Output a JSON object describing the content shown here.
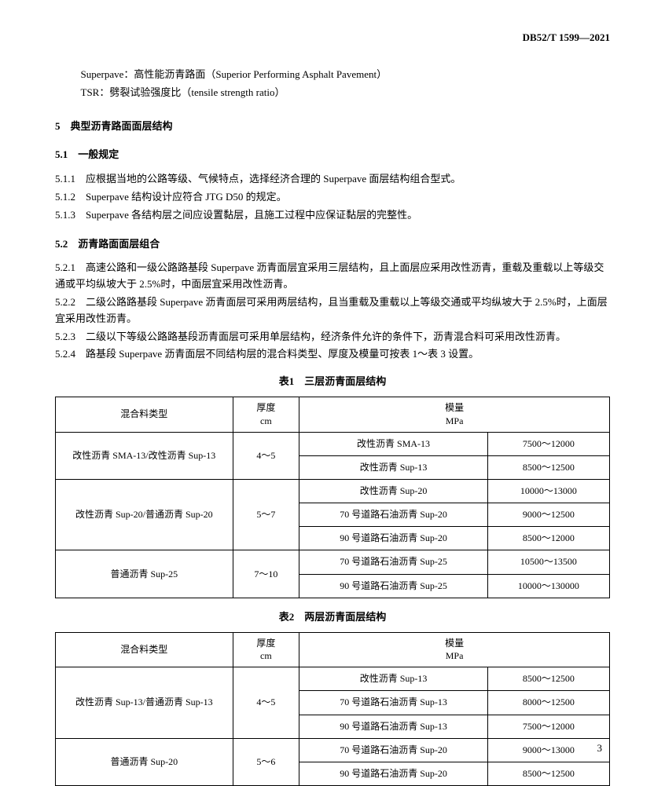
{
  "header": {
    "doc_code": "DB52/T 1599—2021"
  },
  "defs": [
    {
      "text": "Superpave：高性能沥青路面（Superior Performing Asphalt Pavement）"
    },
    {
      "text": "TSR：劈裂试验强度比（tensile strength ratio）"
    }
  ],
  "section5": {
    "num": "5",
    "title": "典型沥青路面面层结构"
  },
  "section51": {
    "num": "5.1",
    "title": "一般规定",
    "clauses": [
      {
        "num": "5.1.1",
        "text": "应根据当地的公路等级、气候特点，选择经济合理的 Superpave 面层结构组合型式。"
      },
      {
        "num": "5.1.2",
        "text": "Superpave 结构设计应符合 JTG D50 的规定。"
      },
      {
        "num": "5.1.3",
        "text": "Superpave 各结构层之间应设置黏层，且施工过程中应保证黏层的完整性。"
      }
    ]
  },
  "section52": {
    "num": "5.2",
    "title": "沥青路面面层组合",
    "clauses": [
      {
        "num": "5.2.1",
        "text": "高速公路和一级公路路基段 Superpave 沥青面层宜采用三层结构，且上面层应采用改性沥青，重载及重载以上等级交通或平均纵坡大于 2.5%时，中面层宜采用改性沥青。"
      },
      {
        "num": "5.2.2",
        "text": "二级公路路基段 Superpave 沥青面层可采用两层结构，且当重载及重载以上等级交通或平均纵坡大于 2.5%时，上面层宜采用改性沥青。"
      },
      {
        "num": "5.2.3",
        "text": "二级以下等级公路路基段沥青面层可采用单层结构，经济条件允许的条件下，沥青混合料可采用改性沥青。"
      },
      {
        "num": "5.2.4",
        "text": "路基段 Superpave 沥青面层不同结构层的混合料类型、厚度及模量可按表 1～表 3 设置。"
      }
    ]
  },
  "table1": {
    "caption": "表1　三层沥青面层结构",
    "header": {
      "c1": "混合料类型",
      "c2_top": "厚度",
      "c2_bot": "cm",
      "c3_top": "模量",
      "c3_bot": "MPa"
    },
    "groups": [
      {
        "mix": "改性沥青 SMA-13/改性沥青 Sup-13",
        "thickness": "4～5",
        "rows": [
          {
            "mat": "改性沥青 SMA-13",
            "mod": "7500～12000"
          },
          {
            "mat": "改性沥青 Sup-13",
            "mod": "8500～12500"
          }
        ]
      },
      {
        "mix": "改性沥青 Sup-20/普通沥青 Sup-20",
        "thickness": "5～7",
        "rows": [
          {
            "mat": "改性沥青 Sup-20",
            "mod": "10000～13000"
          },
          {
            "mat": "70 号道路石油沥青 Sup-20",
            "mod": "9000～12500"
          },
          {
            "mat": "90 号道路石油沥青 Sup-20",
            "mod": "8500～12000"
          }
        ]
      },
      {
        "mix": "普通沥青 Sup-25",
        "thickness": "7～10",
        "rows": [
          {
            "mat": "70 号道路石油沥青 Sup-25",
            "mod": "10500～13500"
          },
          {
            "mat": "90 号道路石油沥青 Sup-25",
            "mod": "10000～130000"
          }
        ]
      }
    ]
  },
  "table2": {
    "caption": "表2　两层沥青面层结构",
    "header": {
      "c1": "混合料类型",
      "c2_top": "厚度",
      "c2_bot": "cm",
      "c3_top": "模量",
      "c3_bot": "MPa"
    },
    "groups": [
      {
        "mix": "改性沥青 Sup-13/普通沥青 Sup-13",
        "thickness": "4～5",
        "rows": [
          {
            "mat": "改性沥青 Sup-13",
            "mod": "8500～12500"
          },
          {
            "mat": "70 号道路石油沥青 Sup-13",
            "mod": "8000～12500"
          },
          {
            "mat": "90 号道路石油沥青 Sup-13",
            "mod": "7500～12000"
          }
        ]
      },
      {
        "mix": "普通沥青 Sup-20",
        "thickness": "5～6",
        "rows": [
          {
            "mat": "70 号道路石油沥青 Sup-20",
            "mod": "9000～13000"
          },
          {
            "mat": "90 号道路石油沥青 Sup-20",
            "mod": "8500～12500"
          }
        ]
      }
    ]
  },
  "page_num": "3"
}
